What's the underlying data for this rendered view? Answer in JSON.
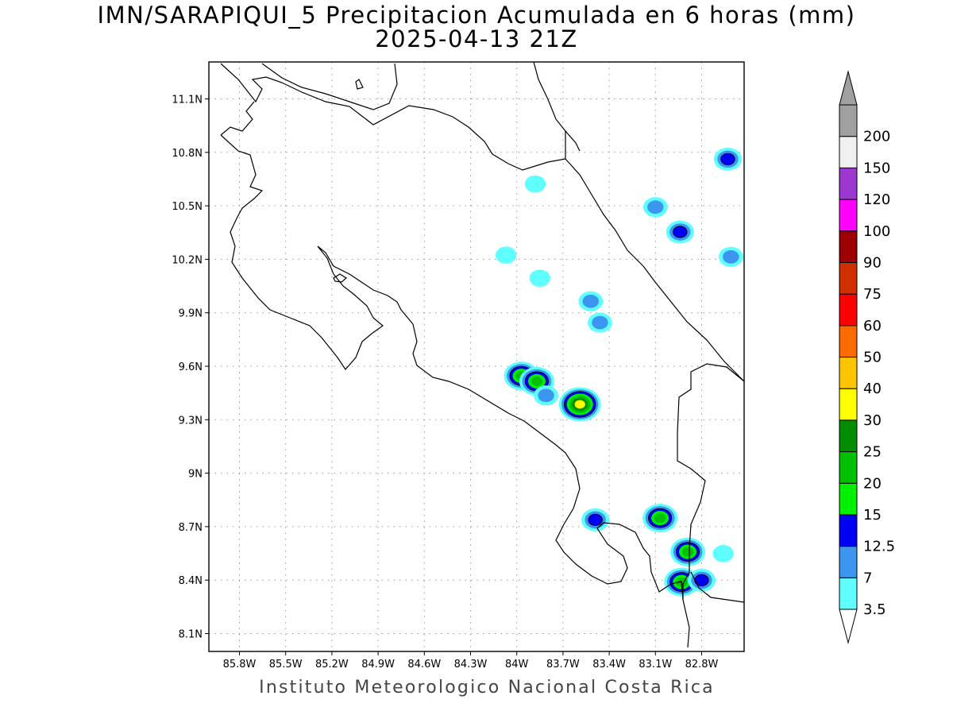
{
  "title_line1": "IMN/SARAPIQUI_5 Precipitacion Acumulada en 6 horas (mm)",
  "title_line2": "2025-04-13 21Z",
  "credit": "Instituto Meteorologico Nacional Costa Rica",
  "map": {
    "lon_ticks": [
      "85.8W",
      "85.5W",
      "85.2W",
      "84.9W",
      "84.6W",
      "84.3W",
      "84W",
      "83.7W",
      "83.4W",
      "83.1W",
      "82.8W"
    ],
    "lat_ticks": [
      "11.1N",
      "10.8N",
      "10.5N",
      "10.2N",
      "9.9N",
      "9.6N",
      "9.3N",
      "9N",
      "8.7N",
      "8.4N",
      "8.1N"
    ]
  },
  "colorbar": {
    "levels": [
      "3.5",
      "7",
      "12.5",
      "15",
      "20",
      "25",
      "30",
      "40",
      "50",
      "60",
      "75",
      "90",
      "100",
      "120",
      "150",
      "200"
    ],
    "colors": [
      "#60ffff",
      "#3c96f0",
      "#0000f5",
      "#00f000",
      "#00c000",
      "#008e00",
      "#ffff00",
      "#ffc400",
      "#ff6a00",
      "#ff0000",
      "#d03000",
      "#9c0000",
      "#ff00ff",
      "#9c37d0",
      "#f0f0f0",
      "#a0a0a0"
    ]
  },
  "precip_cells": [
    {
      "lon": -83.88,
      "lat": 10.63,
      "level": "3.5"
    },
    {
      "lon": -83.1,
      "lat": 10.5,
      "level": "7"
    },
    {
      "lon": -82.94,
      "lat": 10.36,
      "level": "12.5"
    },
    {
      "lon": -82.63,
      "lat": 10.77,
      "level": "12.5"
    },
    {
      "lon": -82.61,
      "lat": 10.22,
      "level": "7"
    },
    {
      "lon": -83.52,
      "lat": 9.97,
      "level": "7"
    },
    {
      "lon": -83.46,
      "lat": 9.85,
      "level": "7"
    },
    {
      "lon": -83.85,
      "lat": 10.1,
      "level": "3.5"
    },
    {
      "lon": -84.07,
      "lat": 10.23,
      "level": "3.5"
    },
    {
      "lon": -83.97,
      "lat": 9.55,
      "level": "20"
    },
    {
      "lon": -83.87,
      "lat": 9.52,
      "level": "20"
    },
    {
      "lon": -83.59,
      "lat": 9.39,
      "level": "30"
    },
    {
      "lon": -83.81,
      "lat": 9.44,
      "level": "7"
    },
    {
      "lon": -83.49,
      "lat": 8.74,
      "level": "12.5"
    },
    {
      "lon": -83.07,
      "lat": 8.75,
      "level": "20"
    },
    {
      "lon": -82.89,
      "lat": 8.56,
      "level": "20"
    },
    {
      "lon": -82.93,
      "lat": 8.39,
      "level": "20"
    },
    {
      "lon": -82.8,
      "lat": 8.4,
      "level": "12.5"
    },
    {
      "lon": -82.66,
      "lat": 8.55,
      "level": "3.5"
    }
  ]
}
